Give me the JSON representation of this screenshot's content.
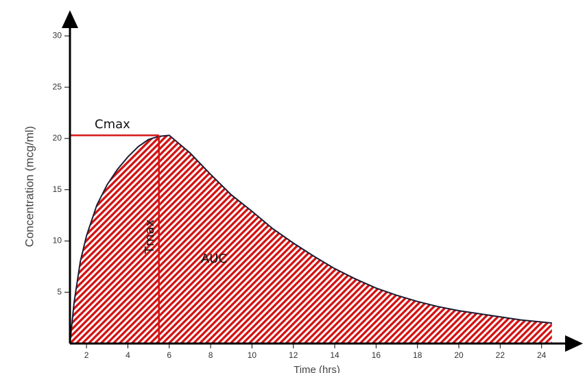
{
  "chart_data": {
    "type": "area",
    "ylabel": "Concentration (mcg/ml)",
    "xlabel": "Time (hrs)",
    "x": [
      1.2,
      1.4,
      1.7,
      2,
      2.5,
      3,
      3.5,
      4,
      4.5,
      5,
      5.5,
      6,
      7,
      8,
      9,
      10,
      11,
      12,
      13,
      14,
      15,
      16,
      17,
      18,
      19,
      20,
      21,
      22,
      23,
      24,
      24.5
    ],
    "values": [
      0,
      4,
      8,
      10.5,
      13.5,
      15.5,
      17,
      18.2,
      19.2,
      19.9,
      20.2,
      20.3,
      18.6,
      16.5,
      14.5,
      12.9,
      11.2,
      9.8,
      8.5,
      7.3,
      6.3,
      5.4,
      4.7,
      4.1,
      3.6,
      3.2,
      2.9,
      2.6,
      2.3,
      2.1,
      2.0
    ],
    "color": "#d41414",
    "line_color": "#1c1c33",
    "xlim": [
      1.2,
      26
    ],
    "ylim": [
      0,
      32.5
    ],
    "xticks": [
      2,
      4,
      6,
      8,
      10,
      12,
      14,
      16,
      18,
      20,
      22,
      24
    ],
    "yticks": [
      5,
      10,
      15,
      20,
      25,
      30
    ],
    "annotations": [
      {
        "label": "Cmax",
        "y": 20.3
      },
      {
        "label": "Tmax",
        "x": 5.5
      },
      {
        "label": "AUC"
      }
    ]
  }
}
